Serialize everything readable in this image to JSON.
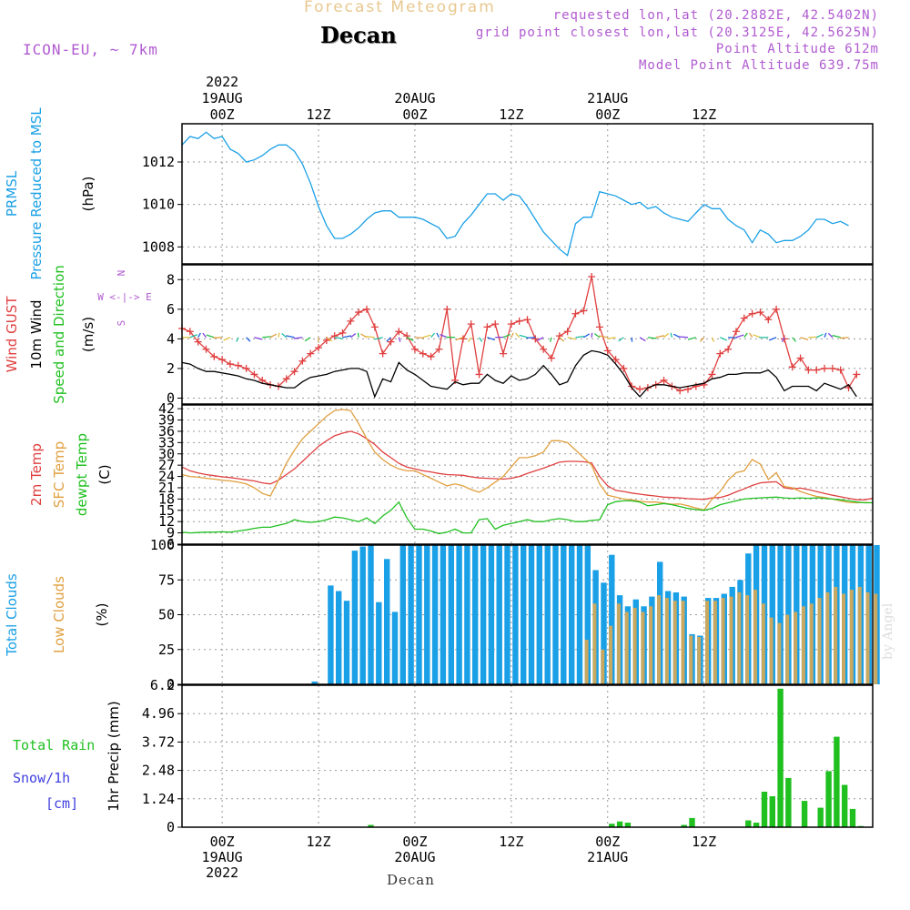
{
  "header": {
    "top_title": "Forecast Meteogram",
    "location": "Decan",
    "model": "ICON-EU, ~ 7km",
    "requested": "requested lon,lat (20.2882E, 42.5402N)",
    "grid_point": "grid point closest lon,lat (20.3125E, 42.5625N)",
    "point_altitude": "Point Altitude 612m",
    "model_altitude": "Model Point Altitude 639.75m",
    "watermark": "by Angel"
  },
  "time_axis": {
    "top_labels": [
      {
        "h": 0,
        "lines": [
          "2022",
          "19AUG",
          "00Z"
        ]
      },
      {
        "h": 12,
        "lines": [
          "12Z"
        ]
      },
      {
        "h": 24,
        "lines": [
          "20AUG",
          "00Z"
        ]
      },
      {
        "h": 36,
        "lines": [
          "12Z"
        ]
      },
      {
        "h": 48,
        "lines": [
          "21AUG",
          "00Z"
        ]
      },
      {
        "h": 60,
        "lines": [
          "12Z"
        ]
      }
    ],
    "bottom_labels": [
      {
        "h": 0,
        "lines": [
          "00Z",
          "19AUG",
          "2022"
        ]
      },
      {
        "h": 12,
        "lines": [
          "12Z"
        ]
      },
      {
        "h": 24,
        "lines": [
          "00Z",
          "20AUG"
        ]
      },
      {
        "h": 36,
        "lines": [
          "12Z"
        ]
      },
      {
        "h": 48,
        "lines": [
          "00Z",
          "21AUG"
        ]
      },
      {
        "h": 60,
        "lines": [
          "12Z"
        ]
      }
    ],
    "footer": "Decan"
  },
  "chart_data": [
    {
      "type": "line",
      "title": "Pressure",
      "ylabel_lines": [
        "PRMSL",
        "Pressure Reduced to MSL",
        "(hPa)"
      ],
      "yticks": [
        1008,
        1010,
        1012
      ],
      "ylim": [
        1007.2,
        1013.8
      ],
      "x_hours_start": -5,
      "x_hours_step": 1,
      "series": [
        {
          "name": "PRMSL",
          "color": "#1aa0e6",
          "values": [
            1012.8,
            1013.2,
            1013.1,
            1013.4,
            1013.1,
            1013.2,
            1012.6,
            1012.4,
            1012.0,
            1012.1,
            1012.3,
            1012.6,
            1012.8,
            1012.8,
            1012.5,
            1011.9,
            1011.0,
            1009.9,
            1009.0,
            1008.4,
            1008.4,
            1008.6,
            1008.9,
            1009.3,
            1009.6,
            1009.7,
            1009.7,
            1009.4,
            1009.4,
            1009.4,
            1009.3,
            1009.1,
            1008.9,
            1008.4,
            1008.5,
            1009.1,
            1009.5,
            1010.0,
            1010.5,
            1010.5,
            1010.2,
            1010.5,
            1010.4,
            1009.9,
            1009.3,
            1008.7,
            1008.3,
            1007.9,
            1007.6,
            1009.1,
            1009.4,
            1009.4,
            1010.6,
            1010.5,
            1010.4,
            1010.2,
            1010.0,
            1010.1,
            1009.8,
            1009.9,
            1009.6,
            1009.4,
            1009.3,
            1009.2,
            1009.6,
            1010.0,
            1009.8,
            1009.8,
            1009.3,
            1009.0,
            1008.8,
            1008.2,
            1008.8,
            1008.6,
            1008.2,
            1008.3,
            1008.3,
            1008.5,
            1008.8,
            1009.3,
            1009.3,
            1009.1,
            1009.2,
            1009.0
          ]
        }
      ]
    },
    {
      "type": "line",
      "title": "Wind",
      "ylabel_lines": [
        "Wind GUST",
        "10m Wind",
        "Speed and Direction",
        "(m/s)"
      ],
      "compass": [
        "N",
        "W <-|-> E",
        "S"
      ],
      "yticks": [
        0,
        2,
        4,
        6,
        8
      ],
      "ylim": [
        -0.4,
        9.0
      ],
      "x_hours_start": -5,
      "x_hours_step": 1,
      "series": [
        {
          "name": "Wind GUST",
          "color": "#e04040",
          "marker": "+",
          "values": [
            4.7,
            4.5,
            3.8,
            3.3,
            2.8,
            2.6,
            2.3,
            2.2,
            2.0,
            1.6,
            1.2,
            0.9,
            0.8,
            1.3,
            1.8,
            2.5,
            3.0,
            3.4,
            3.9,
            4.2,
            4.4,
            5.2,
            5.8,
            6.0,
            4.8,
            3.0,
            3.8,
            4.5,
            4.2,
            3.3,
            3.0,
            2.8,
            3.3,
            6.0,
            1.2,
            4.0,
            5.0,
            1.6,
            4.8,
            5.0,
            3.0,
            5.0,
            5.2,
            5.3,
            4.0,
            3.3,
            2.7,
            4.2,
            4.5,
            5.7,
            5.9,
            8.2,
            4.8,
            3.2,
            2.6,
            2.0,
            0.8,
            0.6,
            0.7,
            0.9,
            1.2,
            0.8,
            0.5,
            0.6,
            0.8,
            0.9,
            1.6,
            3.0,
            3.3,
            4.5,
            5.4,
            5.7,
            5.8,
            5.3,
            6.0,
            4.0,
            2.1,
            2.7,
            1.9,
            1.9,
            2.0,
            2.0,
            1.9,
            0.7,
            1.6
          ]
        },
        {
          "name": "10m Wind",
          "color": "#000000",
          "values": [
            2.4,
            2.3,
            2.0,
            1.8,
            1.8,
            1.7,
            1.6,
            1.5,
            1.3,
            1.2,
            1.0,
            0.9,
            0.8,
            0.7,
            0.7,
            1.1,
            1.4,
            1.5,
            1.6,
            1.8,
            1.9,
            2.0,
            2.0,
            1.8,
            0.1,
            1.3,
            1.1,
            2.4,
            1.9,
            1.6,
            1.2,
            0.8,
            0.7,
            0.6,
            1.1,
            0.9,
            1.0,
            1.0,
            1.6,
            1.2,
            1.0,
            1.5,
            1.2,
            1.3,
            1.6,
            2.2,
            1.6,
            0.9,
            1.1,
            2.2,
            2.9,
            3.2,
            3.1,
            2.9,
            2.3,
            1.6,
            0.7,
            0.1,
            0.7,
            0.9,
            0.9,
            0.8,
            0.7,
            0.8,
            0.9,
            1.0,
            1.3,
            1.4,
            1.6,
            1.6,
            1.7,
            1.7,
            1.7,
            1.9,
            1.4,
            0.5,
            0.8,
            0.8,
            0.8,
            0.5,
            1.0,
            0.8,
            0.6,
            0.9,
            0.1
          ]
        }
      ]
    },
    {
      "type": "line",
      "title": "Temperature",
      "ylabel_lines": [
        "2m Temp",
        "SFC Temp",
        "dewpt Temp",
        "(C)"
      ],
      "yticks": [
        6,
        9,
        12,
        15,
        18,
        21,
        24,
        27,
        30,
        33,
        36,
        39,
        42
      ],
      "ylim": [
        6,
        43
      ],
      "x_hours_start": -5,
      "x_hours_step": 1,
      "series": [
        {
          "name": "2m Temp",
          "color": "#e04040",
          "values": [
            26.5,
            25.5,
            24.9,
            24.5,
            24.2,
            23.9,
            23.7,
            23.4,
            23.1,
            22.8,
            22.3,
            22.0,
            23.0,
            24.5,
            26.0,
            28.0,
            30.0,
            32.0,
            33.5,
            34.8,
            35.5,
            36.0,
            35.3,
            34.0,
            32.5,
            30.5,
            29.0,
            27.5,
            26.5,
            26.0,
            25.5,
            25.2,
            24.8,
            24.5,
            24.4,
            24.3,
            23.9,
            23.6,
            23.5,
            23.4,
            23.3,
            23.5,
            24.0,
            24.8,
            25.5,
            26.2,
            27.0,
            27.8,
            28.0,
            28.0,
            27.9,
            27.6,
            24.0,
            21.5,
            20.3,
            20.0,
            19.6,
            19.3,
            19.0,
            18.8,
            18.5,
            18.4,
            18.3,
            18.1,
            18.0,
            17.9,
            18.3,
            18.4,
            19.0,
            19.9,
            20.7,
            21.6,
            22.3,
            22.5,
            22.6,
            21.0,
            20.7,
            20.9,
            20.5,
            20.0,
            19.5,
            19.0,
            18.6,
            18.2,
            17.8,
            17.8,
            18.2
          ]
        },
        {
          "name": "SFC Temp",
          "color": "#e0a040",
          "values": [
            24.5,
            24.0,
            23.8,
            23.5,
            23.3,
            23.0,
            22.8,
            22.5,
            22.0,
            21.0,
            19.5,
            18.8,
            23.0,
            27.5,
            31.0,
            34.0,
            36.0,
            38.0,
            40.0,
            41.5,
            41.8,
            41.5,
            38.0,
            34.0,
            30.5,
            28.5,
            27.0,
            26.0,
            25.5,
            25.5,
            24.5,
            23.5,
            22.5,
            21.5,
            22.0,
            21.5,
            20.5,
            19.8,
            21.0,
            22.5,
            24.0,
            26.5,
            29.0,
            29.0,
            29.5,
            30.5,
            33.5,
            33.5,
            33.0,
            31.0,
            29.0,
            27.0,
            22.0,
            19.0,
            18.5,
            18.0,
            17.8,
            17.4,
            17.2,
            17.2,
            16.9,
            16.6,
            16.7,
            16.2,
            15.6,
            15.1,
            18.0,
            20.0,
            23.0,
            25.0,
            25.5,
            28.5,
            27.3,
            23.2,
            25.0,
            21.3,
            21.0,
            20.0,
            19.3,
            18.7,
            18.4,
            18.0,
            17.5,
            17.1,
            17.0,
            17.1,
            17.0
          ]
        },
        {
          "name": "dewpt Temp",
          "color": "#20c020",
          "values": [
            9.2,
            9.0,
            9.1,
            9.2,
            9.2,
            9.3,
            9.2,
            9.5,
            9.8,
            10.2,
            10.5,
            10.5,
            11.0,
            11.5,
            12.5,
            12.0,
            11.8,
            12.0,
            12.5,
            13.2,
            13.0,
            12.5,
            12.0,
            13.0,
            11.5,
            13.5,
            15.0,
            17.2,
            13.0,
            10.0,
            10.0,
            9.5,
            8.8,
            9.2,
            10.0,
            9.0,
            9.0,
            12.5,
            12.8,
            10.0,
            11.0,
            11.5,
            12.0,
            12.5,
            12.0,
            12.0,
            12.5,
            12.8,
            12.5,
            12.0,
            12.0,
            12.3,
            12.5,
            16.5,
            17.3,
            17.5,
            17.5,
            17.2,
            16.2,
            16.5,
            16.8,
            16.5,
            16.0,
            15.5,
            15.2,
            15.0,
            15.5,
            16.5,
            17.0,
            17.5,
            18.0,
            18.2,
            18.3,
            18.4,
            18.5,
            18.3,
            18.2,
            18.3,
            18.2,
            18.3,
            18.2,
            18.0,
            17.8,
            17.5,
            17.2,
            17.0,
            17.0
          ]
        }
      ]
    },
    {
      "type": "bar",
      "title": "Clouds",
      "ylabel_lines": [
        "Total Clouds",
        "Low Clouds",
        "(%)"
      ],
      "yticks": [
        0,
        25,
        50,
        75,
        100
      ],
      "ylim": [
        0,
        100
      ],
      "x_hours_start": -5,
      "x_hours_step": 1,
      "series": [
        {
          "name": "Total Clouds",
          "color": "#1aa0e6",
          "values": [
            0,
            0,
            0,
            0,
            0,
            0,
            0,
            0,
            0,
            0,
            0,
            0,
            0,
            0,
            0,
            0,
            2,
            0,
            71,
            67,
            60,
            96,
            99,
            100,
            59,
            90,
            52,
            100,
            100,
            100,
            100,
            100,
            100,
            100,
            100,
            100,
            100,
            100,
            100,
            100,
            100,
            100,
            100,
            100,
            100,
            100,
            100,
            100,
            100,
            100,
            100,
            82,
            73,
            93,
            64,
            56,
            61,
            56,
            63,
            88,
            67,
            66,
            63,
            36,
            35,
            62,
            62,
            65,
            70,
            75,
            94,
            100,
            100,
            100,
            100,
            100,
            100,
            100,
            100,
            100,
            100,
            100,
            100,
            100,
            100,
            100,
            100
          ]
        },
        {
          "name": "Low Clouds",
          "color": "#c8a860",
          "values": [
            0,
            0,
            0,
            0,
            0,
            0,
            0,
            0,
            0,
            0,
            0,
            0,
            0,
            0,
            0,
            0,
            0,
            0,
            0,
            0,
            0,
            0,
            0,
            0,
            0,
            0,
            0,
            0,
            0,
            0,
            0,
            0,
            0,
            0,
            0,
            0,
            0,
            0,
            0,
            0,
            0,
            0,
            0,
            0,
            0,
            0,
            0,
            0,
            0,
            0,
            32,
            58,
            25,
            42,
            58,
            52,
            55,
            52,
            56,
            64,
            62,
            60,
            60,
            35,
            34,
            60,
            60,
            62,
            63,
            66,
            64,
            68,
            58,
            48,
            44,
            50,
            52,
            56,
            58,
            62,
            66,
            70,
            65,
            68,
            70,
            66,
            65
          ]
        }
      ]
    },
    {
      "type": "bar",
      "title": "Precipitation",
      "ylabel_lines": [
        "1hr Precip (mm)"
      ],
      "side_labels": [
        "Total  Rain",
        "Snow/1h",
        "[cm]"
      ],
      "yticks": [
        0,
        1.24,
        2.48,
        3.72,
        4.96,
        6.2
      ],
      "ytick_labels": [
        "0",
        "1.24",
        "2.48",
        "3.72",
        "4.96",
        "6.2"
      ],
      "ylim": [
        0,
        6.2
      ],
      "x_hours_start": -5,
      "x_hours_step": 1,
      "series": [
        {
          "name": "Total Rain",
          "color": "#20c020",
          "values": [
            0,
            0,
            0,
            0,
            0,
            0,
            0,
            0,
            0,
            0,
            0,
            0,
            0,
            0,
            0,
            0,
            0,
            0,
            0,
            0,
            0,
            0,
            0,
            0.1,
            0,
            0,
            0,
            0,
            0,
            0,
            0,
            0,
            0,
            0,
            0,
            0,
            0,
            0,
            0,
            0,
            0,
            0,
            0,
            0,
            0,
            0,
            0,
            0,
            0,
            0,
            0,
            0,
            0,
            0.15,
            0.25,
            0.2,
            0,
            0,
            0,
            0,
            0,
            0,
            0.1,
            0.4,
            0,
            0,
            0,
            0,
            0,
            0,
            0.3,
            0.2,
            1.55,
            1.35,
            6.05,
            2.15,
            0,
            1.15,
            0,
            0.85,
            2.45,
            3.95,
            1.85,
            0.8,
            0.05,
            0,
            0
          ]
        }
      ]
    }
  ]
}
